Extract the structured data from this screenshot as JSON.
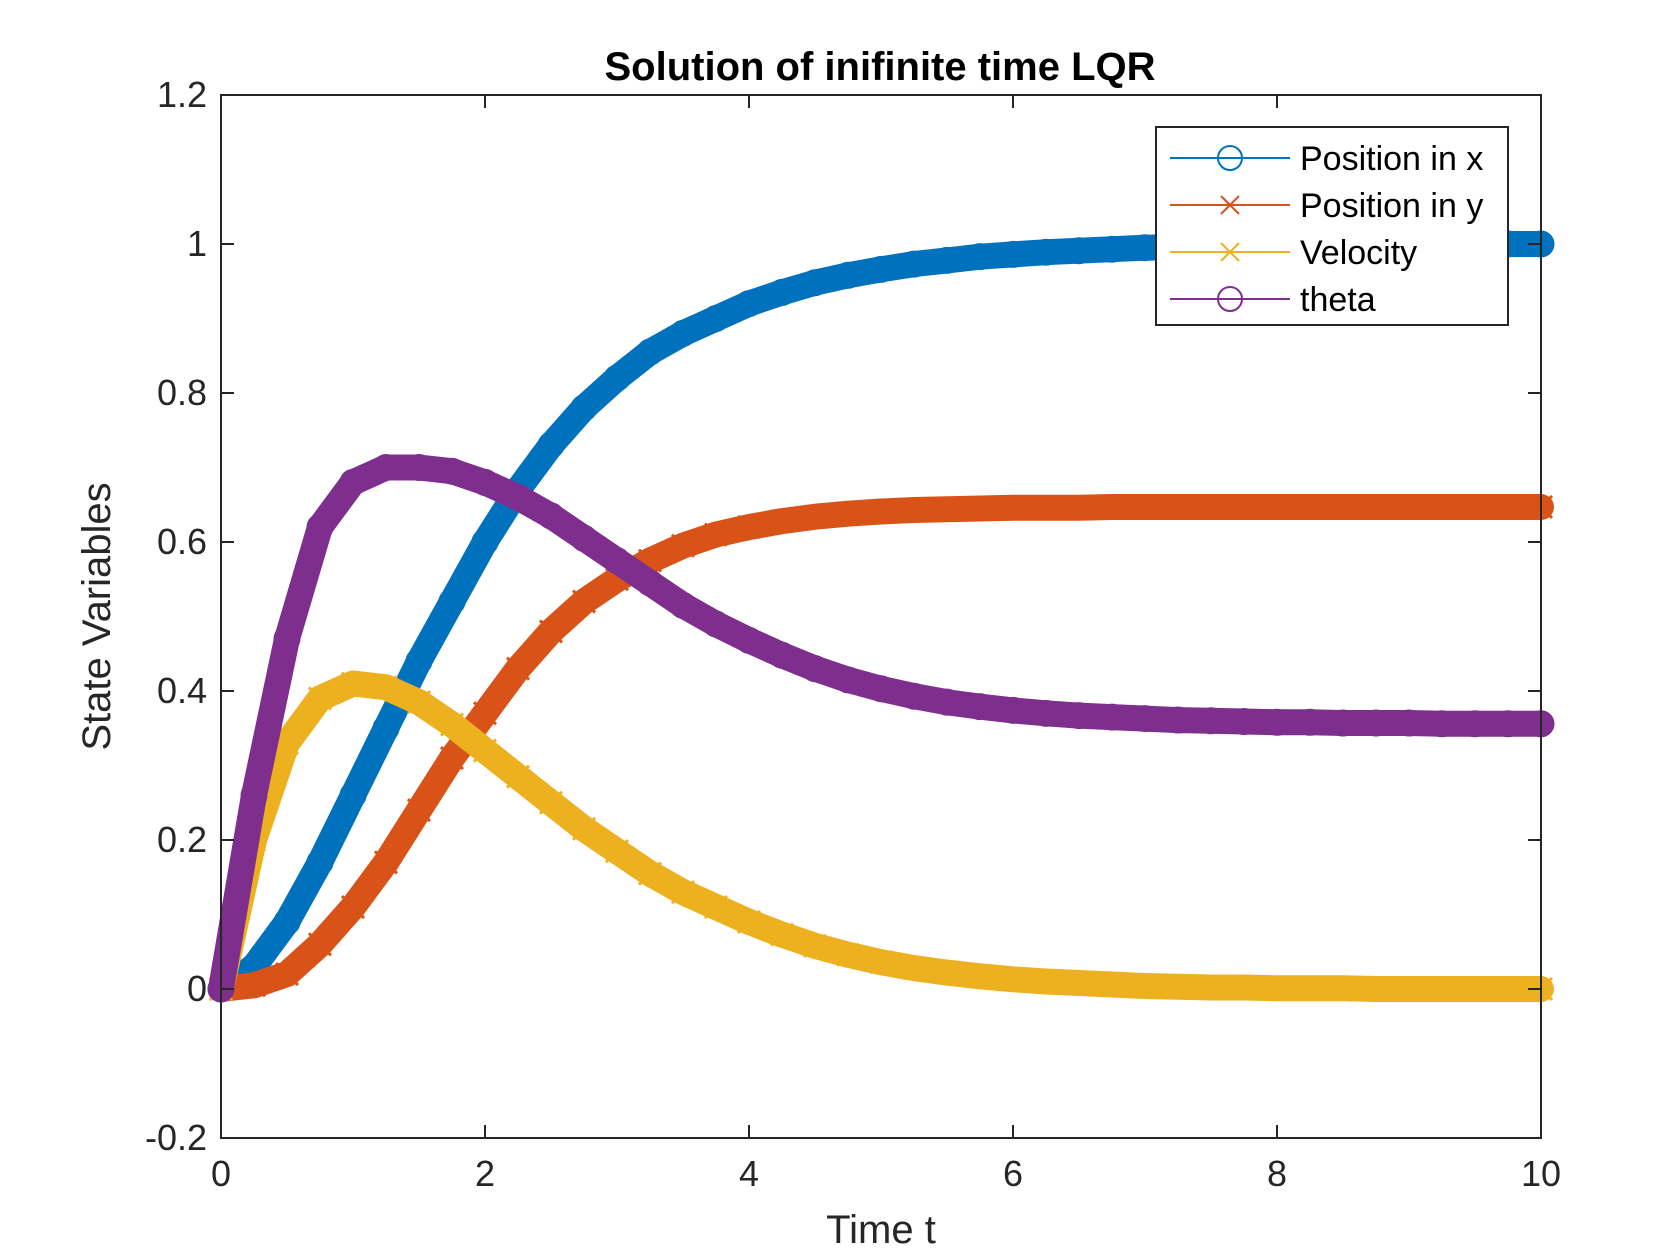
{
  "chart_data": {
    "type": "line",
    "title": "Solution of inifinite time LQR",
    "xlabel": "Time t",
    "ylabel": "State Variables",
    "xlim": [
      0,
      10
    ],
    "ylim": [
      -0.2,
      1.2
    ],
    "xticks": [
      0,
      2,
      4,
      6,
      8,
      10
    ],
    "xtick_labels": [
      "0",
      "2",
      "4",
      "6",
      "8",
      "10"
    ],
    "yticks": [
      -0.2,
      0,
      0.2,
      0.4,
      0.6,
      0.8,
      1,
      1.2
    ],
    "ytick_labels": [
      "-0.2",
      "0",
      "0.2",
      "0.4",
      "0.6",
      "0.8",
      "1",
      "1.2"
    ],
    "grid": false,
    "legend_position": "top-right",
    "x": [
      0,
      0.25,
      0.5,
      0.75,
      1,
      1.25,
      1.5,
      1.75,
      2,
      2.25,
      2.5,
      2.75,
      3,
      3.25,
      3.5,
      3.75,
      4,
      4.25,
      4.5,
      4.75,
      5,
      5.25,
      5.5,
      5.75,
      6,
      6.25,
      6.5,
      6.75,
      7,
      7.25,
      7.5,
      7.75,
      8,
      8.25,
      8.5,
      8.75,
      9,
      9.25,
      9.5,
      9.75,
      10
    ],
    "series": [
      {
        "name": "Position in x",
        "color": "#0072BD",
        "marker": "circle",
        "values": [
          0,
          0.03,
          0.09,
          0.17,
          0.26,
          0.35,
          0.44,
          0.52,
          0.6,
          0.67,
          0.73,
          0.78,
          0.82,
          0.855,
          0.88,
          0.9,
          0.92,
          0.935,
          0.948,
          0.958,
          0.966,
          0.973,
          0.978,
          0.983,
          0.986,
          0.989,
          0.991,
          0.993,
          0.995,
          0.996,
          0.997,
          0.998,
          0.998,
          0.999,
          0.999,
          0.999,
          1.0,
          1.0,
          1.0,
          1.0,
          1.0
        ]
      },
      {
        "name": "Position in y",
        "color": "#D95319",
        "marker": "x",
        "values": [
          0,
          0.005,
          0.02,
          0.06,
          0.11,
          0.17,
          0.24,
          0.31,
          0.37,
          0.43,
          0.48,
          0.52,
          0.55,
          0.575,
          0.595,
          0.61,
          0.62,
          0.628,
          0.634,
          0.638,
          0.641,
          0.643,
          0.644,
          0.645,
          0.646,
          0.646,
          0.646,
          0.647,
          0.647,
          0.647,
          0.647,
          0.647,
          0.647,
          0.647,
          0.647,
          0.647,
          0.647,
          0.647,
          0.647,
          0.647,
          0.647
        ]
      },
      {
        "name": "Velocity",
        "color": "#EDB120",
        "marker": "x",
        "values": [
          0,
          0.2,
          0.33,
          0.39,
          0.41,
          0.405,
          0.385,
          0.355,
          0.32,
          0.285,
          0.25,
          0.215,
          0.185,
          0.155,
          0.13,
          0.11,
          0.09,
          0.073,
          0.058,
          0.046,
          0.036,
          0.028,
          0.022,
          0.017,
          0.013,
          0.01,
          0.008,
          0.006,
          0.004,
          0.003,
          0.002,
          0.002,
          0.001,
          0.001,
          0.001,
          0.0,
          0.0,
          0.0,
          0.0,
          0.0,
          0.0
        ]
      },
      {
        "name": "theta",
        "color": "#7E2F8E",
        "marker": "circle",
        "values": [
          0,
          0.26,
          0.47,
          0.62,
          0.68,
          0.7,
          0.7,
          0.695,
          0.68,
          0.66,
          0.635,
          0.605,
          0.575,
          0.545,
          0.515,
          0.49,
          0.468,
          0.448,
          0.43,
          0.415,
          0.403,
          0.393,
          0.385,
          0.379,
          0.374,
          0.37,
          0.367,
          0.365,
          0.363,
          0.361,
          0.36,
          0.359,
          0.358,
          0.358,
          0.357,
          0.357,
          0.357,
          0.356,
          0.356,
          0.356,
          0.356
        ]
      }
    ]
  }
}
